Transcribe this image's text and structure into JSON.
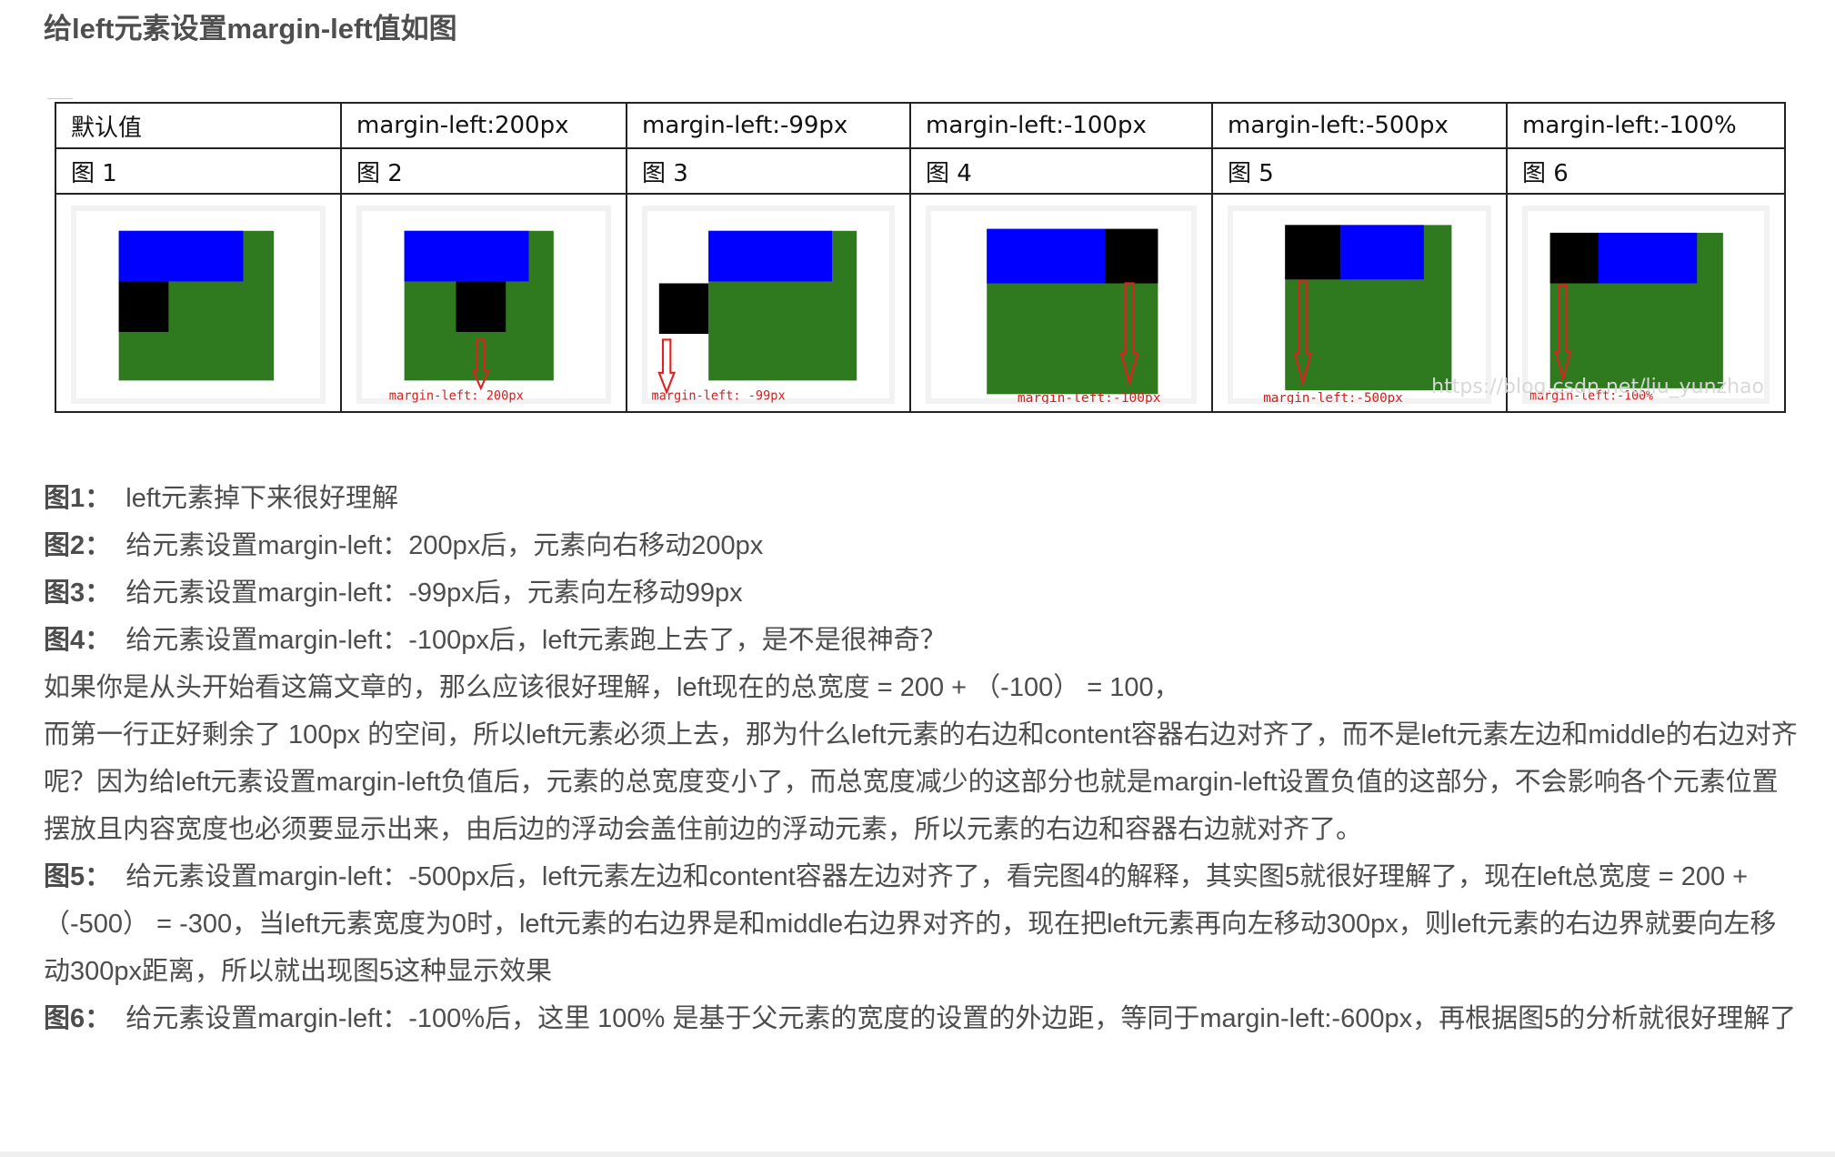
{
  "title": "给left元素设置margin-left值如图",
  "table": {
    "headers": [
      "默认值",
      "margin-left:200px",
      "margin-left:-99px",
      "margin-left:-100px",
      "margin-left:-500px",
      "margin-left:-100%"
    ],
    "figure_numbers": [
      "图 1",
      "图 2",
      "图 3",
      "图 4",
      "图 5",
      "图 6"
    ],
    "diagram_captions": [
      "",
      "margin-left: 200px",
      "margin-left: -99px",
      "margin-left:-100px",
      "margin-left:-500px",
      "margin-left:-100%"
    ],
    "watermark": "https://blog.csdn.net/liu_yunzhao",
    "colors": {
      "container": "#2f7a1f",
      "middle": "#0000ff",
      "left": "#000000",
      "arrow": "#e02020",
      "caption": "#d02020"
    }
  },
  "paragraphs": [
    {
      "label": "图1：",
      "text": "left元素掉下来很好理解"
    },
    {
      "label": "图2：",
      "text": "给元素设置margin-left：200px后，元素向右移动200px"
    },
    {
      "label": "图3：",
      "text": "给元素设置margin-left：-99px后，元素向左移动99px"
    },
    {
      "label": "图4：",
      "text": "给元素设置margin-left：-100px后，left元素跑上去了，是不是很神奇？"
    },
    {
      "label": "",
      "text": "如果你是从头开始看这篇文章的，那么应该很好理解，left现在的总宽度 = 200 + （-100） = 100，"
    },
    {
      "label": "",
      "text": "而第一行正好剩余了 100px 的空间，所以left元素必须上去，那为什么left元素的右边和content容器右边对齐了，而不是left元素左边和middle的右边对齐呢？因为给left元素设置margin-left负值后，元素的总宽度变小了，而总宽度减少的这部分也就是margin-left设置负值的这部分，不会影响各个元素位置摆放且内容宽度也必须要显示出来，由后边的浮动会盖住前边的浮动元素，所以元素的右边和容器右边就对齐了。"
    },
    {
      "label": "图5：",
      "text": "给元素设置margin-left：-500px后，left元素左边和content容器左边对齐了，看完图4的解释，其实图5就很好理解了，现在left总宽度 = 200 + （-500） = -300，当left元素宽度为0时，left元素的右边界是和middle右边界对齐的，现在把left元素再向左移动300px，则left元素的右边界就要向左移动300px距离，所以就出现图5这种显示效果"
    },
    {
      "label": "图6：",
      "text": "给元素设置margin-left：-100%后，这里 100% 是基于父元素的宽度的设置的外边距，等同于margin-left:-600px，再根据图5的分析就很好理解了"
    }
  ]
}
